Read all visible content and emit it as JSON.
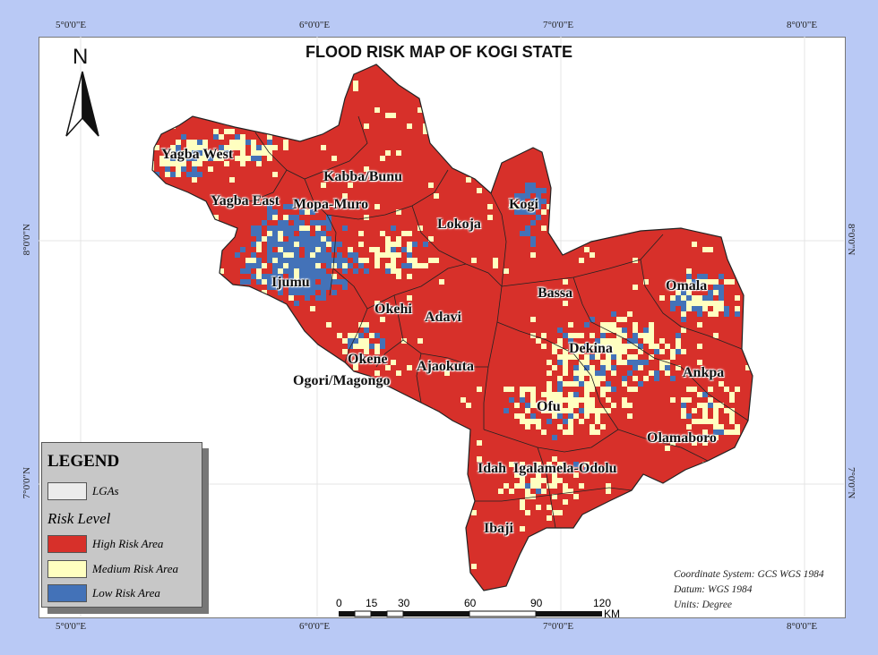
{
  "title": "FLOOD RISK MAP OF KOGI STATE",
  "grid": {
    "lon_labels": [
      "5°0'0\"E",
      "6°0'0\"E",
      "7°0'0\"E",
      "8°0'0\"E"
    ],
    "lat_labels": [
      "8°0'0\"N",
      "7°0'0\"N"
    ]
  },
  "north_arrow": {
    "letter": "N",
    "icon": "north-arrow-icon"
  },
  "lgas": [
    "Yagba West",
    "Kabba/Bunu",
    "Yagba East",
    "Mopa-Muro",
    "Kogi",
    "Lokoja",
    "Ijumu",
    "Bassa",
    "Omala",
    "Okehi",
    "Adavi",
    "Dekina",
    "Okene",
    "Ajaokuta",
    "Ankpa",
    "Ogori/Magongo",
    "Ofu",
    "Olamaboro",
    "Idah",
    "Igalamela-Odolu",
    "Ibaji"
  ],
  "legend": {
    "title": "LEGEND",
    "lga_label": "LGAs",
    "risk_title": "Risk Level",
    "items": [
      {
        "label": "High Risk Area",
        "color": "#d7302a"
      },
      {
        "label": "Medium Risk Area",
        "color": "#ffffc0"
      },
      {
        "label": "Low Risk Area",
        "color": "#4372b8"
      }
    ]
  },
  "scale_bar": {
    "labels": [
      "0",
      "15",
      "30",
      "60",
      "90",
      "120"
    ],
    "unit": "KM"
  },
  "metadata": {
    "coordinate_system": "Coordinate System: GCS WGS 1984",
    "datum": "Datum: WGS 1984",
    "units": "Units: Degree"
  }
}
